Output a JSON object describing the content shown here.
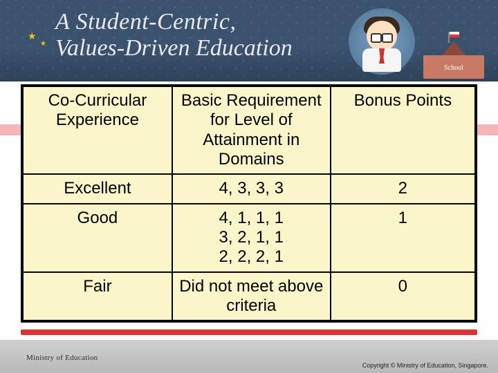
{
  "banner": {
    "line1": "A Student-Centric,",
    "line2": "Values-Driven Education",
    "school_label": "School"
  },
  "table": {
    "background_color": "#fbf6c9",
    "border_color": "#000000",
    "font_size_pt": 18,
    "columns": [
      "Co-Curricular Experience",
      "Basic Requirement for Level of Attainment in Domains",
      "Bonus Points"
    ],
    "rows": [
      {
        "experience": "Excellent",
        "requirement": "4, 3, 3, 3",
        "bonus": "2"
      },
      {
        "experience": "Good",
        "requirement": "4, 1, 1, 1\n3, 2, 1, 1\n2, 2, 2, 1",
        "bonus": "1"
      },
      {
        "experience": "Fair",
        "requirement": "Did not meet above criteria",
        "bonus": "0"
      }
    ]
  },
  "footer": {
    "ministry": "Ministry of Education",
    "copyright": "Copyright © Ministry of Education, Singapore."
  },
  "colors": {
    "banner_bg": "#3a526e",
    "pink_band": "#f6b6b8",
    "red_bar": "#e5302f",
    "floor": "#c4c4c4"
  }
}
